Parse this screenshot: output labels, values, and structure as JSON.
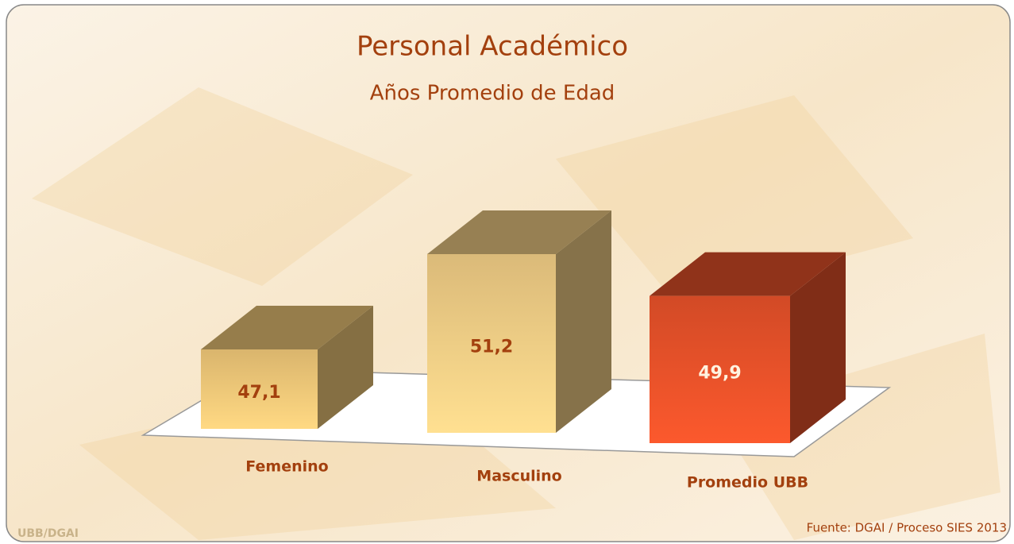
{
  "chart_data": {
    "type": "bar3d",
    "title": "Personal Académico",
    "subtitle": "Años Promedio de Edad",
    "categories": [
      "Femenino",
      "Masculino",
      "Promedio UBB"
    ],
    "values": [
      47.1,
      51.2,
      49.9
    ],
    "value_labels": [
      "47,1",
      "51,2",
      "49,9"
    ],
    "colors": [
      "#f2c979",
      "#f3cf86",
      "#e9522a"
    ],
    "logo": "UBB/DGAI",
    "source": "Fuente: DGAI / Proceso SIES 2013"
  }
}
